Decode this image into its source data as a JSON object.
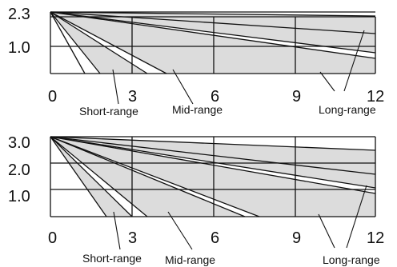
{
  "colors": {
    "shade": "#dcdcdc",
    "ink": "#111111",
    "background": "#ffffff"
  },
  "chart_data": [
    {
      "type": "diagram",
      "x_ticks": [
        "0",
        "3",
        "6",
        "9",
        "12"
      ],
      "y_ticks": [
        "2.3",
        "1.0"
      ],
      "x_range": [
        0,
        12
      ],
      "y_range": [
        0,
        2.3
      ],
      "grid": true,
      "range_labels": [
        "Short-range",
        "Mid-range",
        "Long-range"
      ]
    },
    {
      "type": "diagram",
      "x_ticks": [
        "0",
        "3",
        "6",
        "9",
        "12"
      ],
      "y_ticks": [
        "3.0",
        "2.0",
        "1.0"
      ],
      "x_range": [
        0,
        12
      ],
      "y_range": [
        0,
        3.0
      ],
      "grid": true,
      "range_labels": [
        "Short-range",
        "Mid-range",
        "Long-range"
      ]
    }
  ]
}
